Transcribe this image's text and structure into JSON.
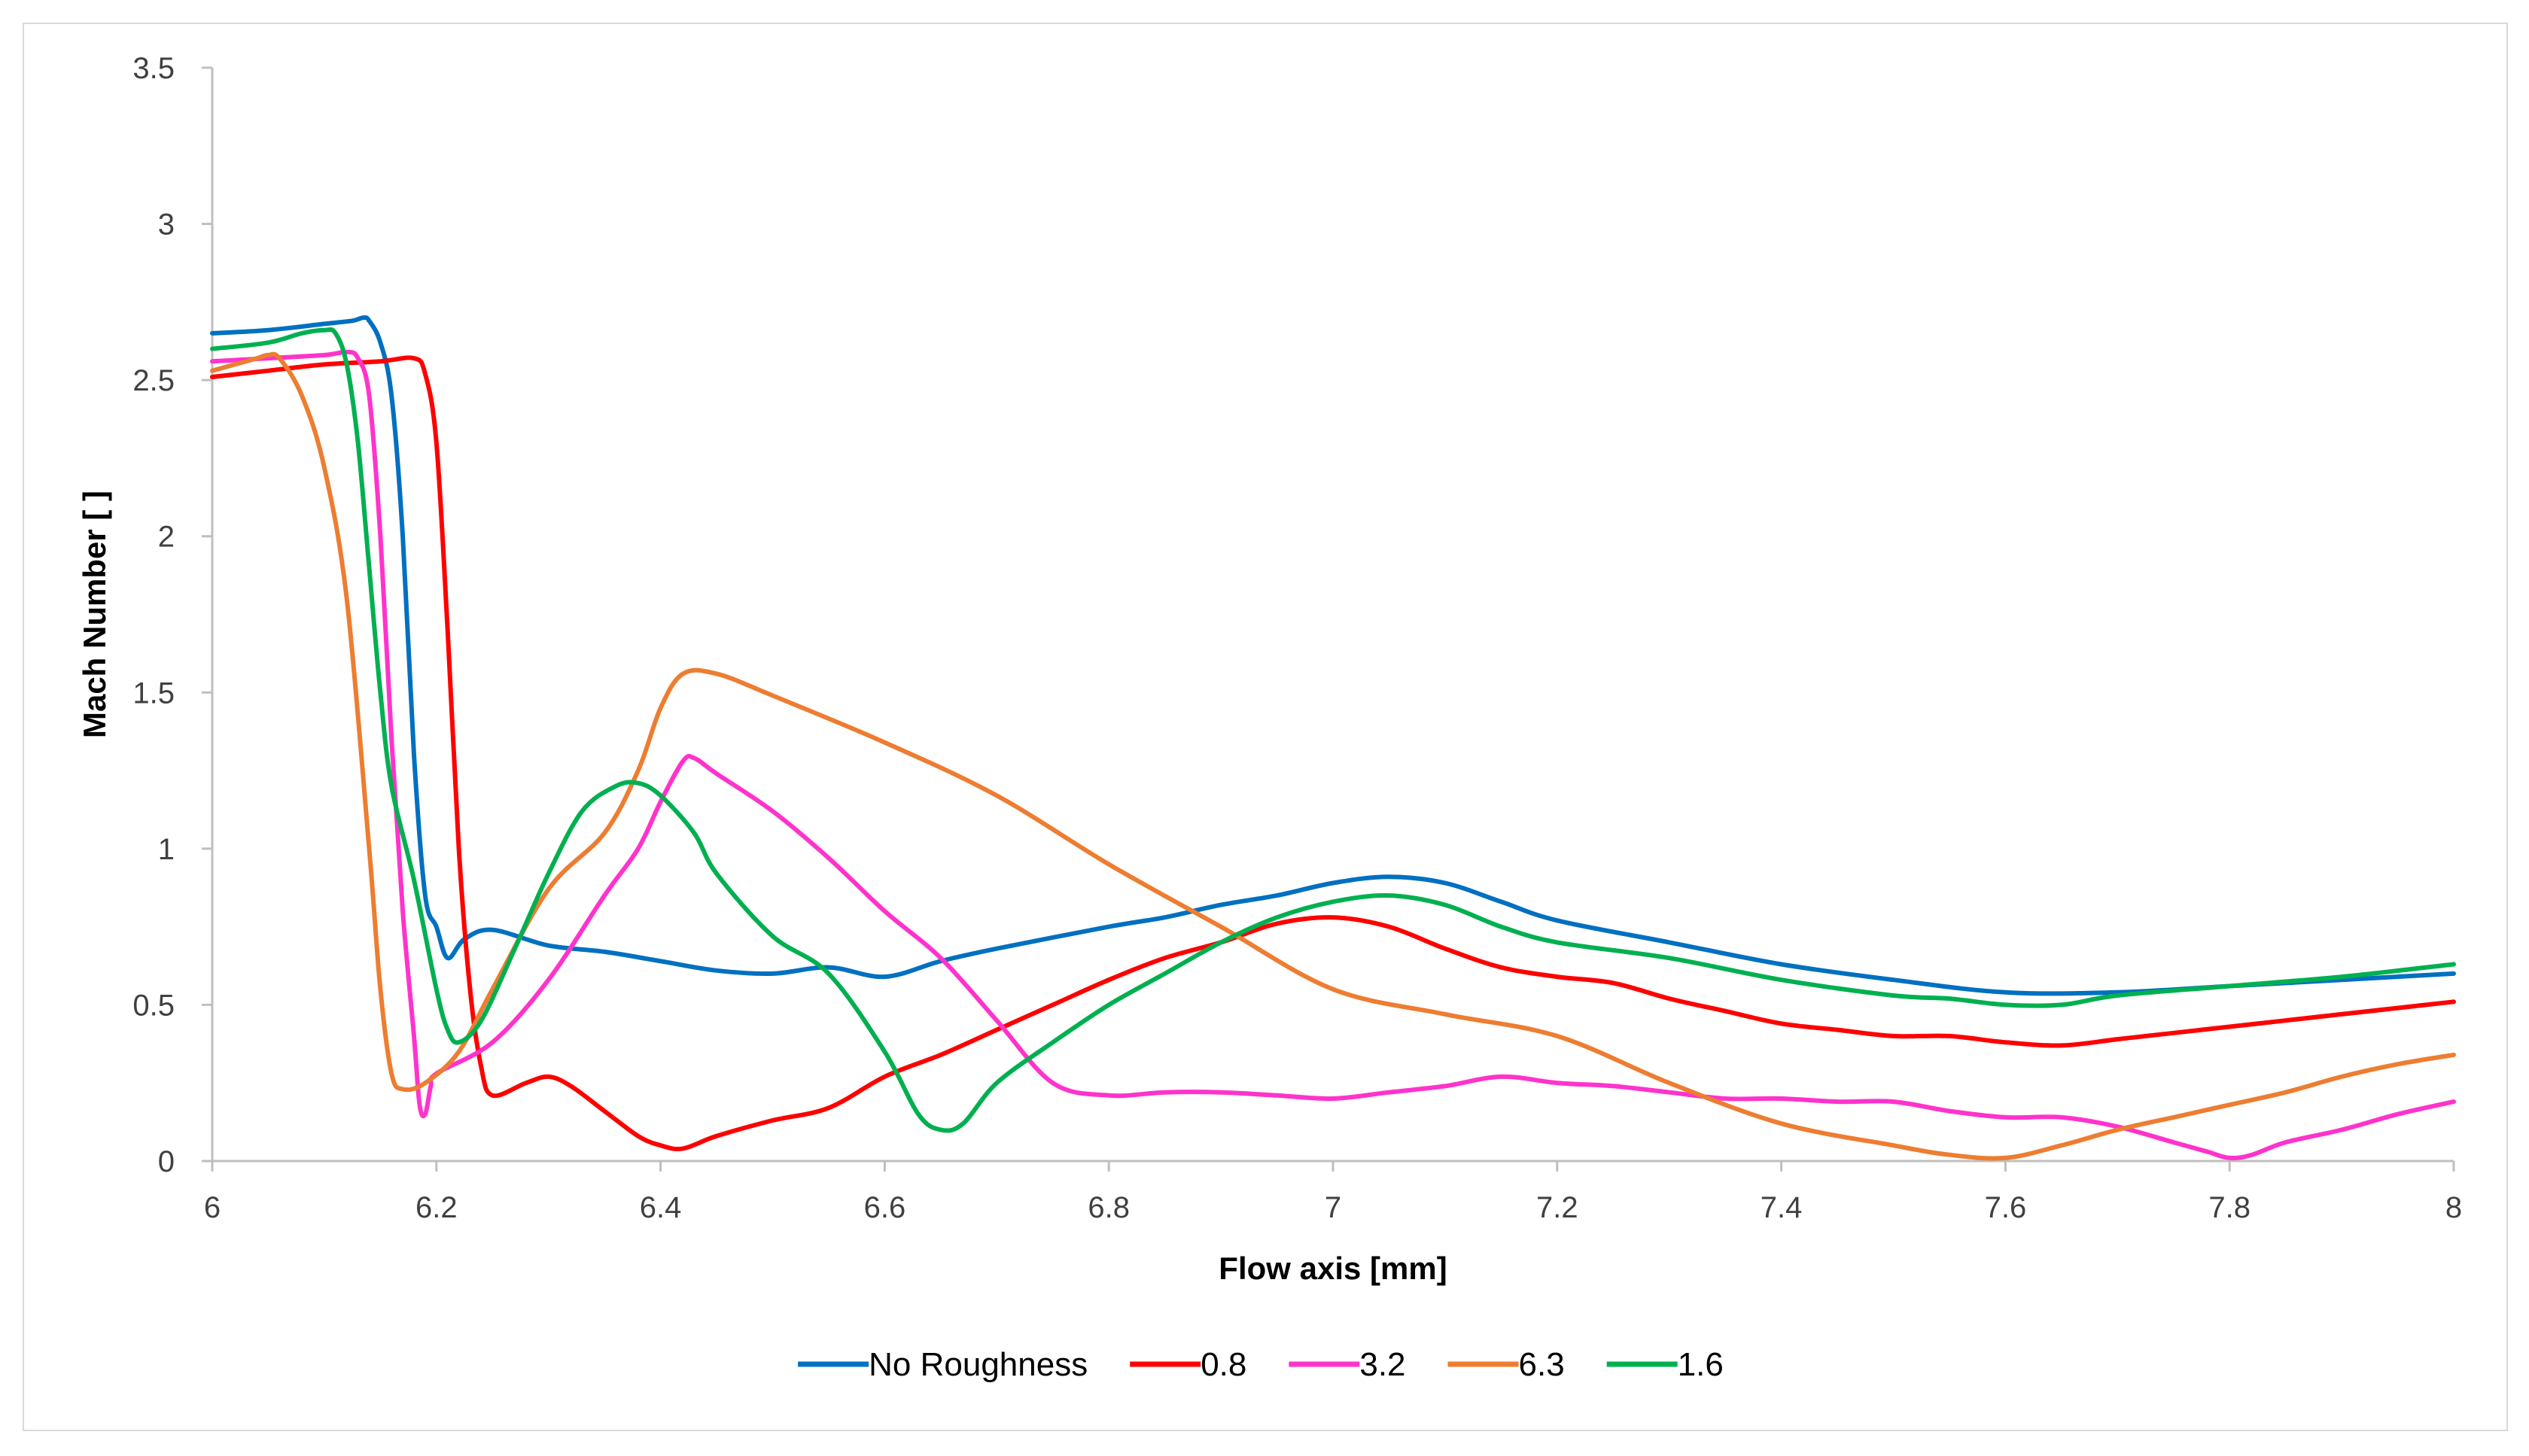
{
  "chart_data": {
    "type": "line",
    "title": "",
    "xlabel": "Flow axis [mm]",
    "ylabel": "Mach Number [ ]",
    "xlim": [
      6,
      8
    ],
    "ylim": [
      0,
      3.5
    ],
    "x_ticks": [
      6,
      6.2,
      6.4,
      6.6,
      6.8,
      7,
      7.2,
      7.4,
      7.6,
      7.8,
      8
    ],
    "x_tick_labels": [
      "6",
      "6.2",
      "6.4",
      "6.6",
      "6.8",
      "7",
      "7.2",
      "7.4",
      "7.6",
      "7.8",
      "8"
    ],
    "y_ticks": [
      0,
      0.5,
      1,
      1.5,
      2,
      2.5,
      3,
      3.5
    ],
    "y_tick_labels": [
      "0",
      "0.5",
      "1",
      "1.5",
      "2",
      "2.5",
      "3",
      "3.5"
    ],
    "grid": false,
    "legend_position": "bottom",
    "series": [
      {
        "name": "No Roughness",
        "color": "#0070C0",
        "points": [
          [
            6.0,
            2.65
          ],
          [
            6.05,
            2.66
          ],
          [
            6.1,
            2.68
          ],
          [
            6.125,
            2.69
          ],
          [
            6.135,
            2.7
          ],
          [
            6.14,
            2.69
          ],
          [
            6.15,
            2.62
          ],
          [
            6.16,
            2.45
          ],
          [
            6.17,
            2.0
          ],
          [
            6.18,
            1.3
          ],
          [
            6.19,
            0.85
          ],
          [
            6.2,
            0.75
          ],
          [
            6.21,
            0.65
          ],
          [
            6.225,
            0.71
          ],
          [
            6.25,
            0.74
          ],
          [
            6.3,
            0.69
          ],
          [
            6.35,
            0.67
          ],
          [
            6.4,
            0.64
          ],
          [
            6.45,
            0.61
          ],
          [
            6.5,
            0.6
          ],
          [
            6.55,
            0.62
          ],
          [
            6.6,
            0.59
          ],
          [
            6.65,
            0.64
          ],
          [
            6.7,
            0.68
          ],
          [
            6.8,
            0.75
          ],
          [
            6.85,
            0.78
          ],
          [
            6.9,
            0.82
          ],
          [
            6.95,
            0.85
          ],
          [
            7.0,
            0.89
          ],
          [
            7.05,
            0.91
          ],
          [
            7.1,
            0.89
          ],
          [
            7.15,
            0.83
          ],
          [
            7.2,
            0.77
          ],
          [
            7.3,
            0.7
          ],
          [
            7.4,
            0.63
          ],
          [
            7.5,
            0.58
          ],
          [
            7.6,
            0.54
          ],
          [
            7.7,
            0.54
          ],
          [
            7.8,
            0.56
          ],
          [
            7.9,
            0.58
          ],
          [
            8.0,
            0.6
          ]
        ]
      },
      {
        "name": "0.8",
        "color": "#FF0000",
        "points": [
          [
            6.0,
            2.51
          ],
          [
            6.05,
            2.53
          ],
          [
            6.1,
            2.55
          ],
          [
            6.15,
            2.56
          ],
          [
            6.18,
            2.57
          ],
          [
            6.19,
            2.52
          ],
          [
            6.2,
            2.3
          ],
          [
            6.21,
            1.7
          ],
          [
            6.22,
            1.0
          ],
          [
            6.23,
            0.55
          ],
          [
            6.24,
            0.3
          ],
          [
            6.25,
            0.21
          ],
          [
            6.28,
            0.25
          ],
          [
            6.3,
            0.27
          ],
          [
            6.32,
            0.24
          ],
          [
            6.35,
            0.16
          ],
          [
            6.38,
            0.08
          ],
          [
            6.4,
            0.05
          ],
          [
            6.42,
            0.04
          ],
          [
            6.45,
            0.08
          ],
          [
            6.5,
            0.13
          ],
          [
            6.55,
            0.17
          ],
          [
            6.6,
            0.27
          ],
          [
            6.65,
            0.34
          ],
          [
            6.7,
            0.42
          ],
          [
            6.75,
            0.5
          ],
          [
            6.8,
            0.58
          ],
          [
            6.85,
            0.65
          ],
          [
            6.9,
            0.7
          ],
          [
            6.95,
            0.76
          ],
          [
            7.0,
            0.78
          ],
          [
            7.05,
            0.75
          ],
          [
            7.1,
            0.68
          ],
          [
            7.15,
            0.62
          ],
          [
            7.2,
            0.59
          ],
          [
            7.25,
            0.57
          ],
          [
            7.3,
            0.52
          ],
          [
            7.35,
            0.48
          ],
          [
            7.4,
            0.44
          ],
          [
            7.45,
            0.42
          ],
          [
            7.5,
            0.4
          ],
          [
            7.55,
            0.4
          ],
          [
            7.6,
            0.38
          ],
          [
            7.65,
            0.37
          ],
          [
            7.7,
            0.39
          ],
          [
            7.75,
            0.41
          ],
          [
            7.8,
            0.43
          ],
          [
            7.85,
            0.45
          ],
          [
            7.9,
            0.47
          ],
          [
            7.95,
            0.49
          ],
          [
            8.0,
            0.51
          ]
        ]
      },
      {
        "name": "3.2",
        "color": "#FF33CC",
        "points": [
          [
            6.0,
            2.56
          ],
          [
            6.05,
            2.57
          ],
          [
            6.1,
            2.58
          ],
          [
            6.12,
            2.59
          ],
          [
            6.13,
            2.57
          ],
          [
            6.14,
            2.45
          ],
          [
            6.15,
            2.0
          ],
          [
            6.16,
            1.35
          ],
          [
            6.17,
            0.8
          ],
          [
            6.18,
            0.4
          ],
          [
            6.185,
            0.18
          ],
          [
            6.19,
            0.15
          ],
          [
            6.195,
            0.24
          ],
          [
            6.2,
            0.28
          ],
          [
            6.25,
            0.38
          ],
          [
            6.3,
            0.58
          ],
          [
            6.35,
            0.85
          ],
          [
            6.38,
            1.0
          ],
          [
            6.4,
            1.15
          ],
          [
            6.42,
            1.28
          ],
          [
            6.43,
            1.29
          ],
          [
            6.45,
            1.24
          ],
          [
            6.5,
            1.12
          ],
          [
            6.55,
            0.97
          ],
          [
            6.6,
            0.8
          ],
          [
            6.65,
            0.65
          ],
          [
            6.7,
            0.45
          ],
          [
            6.75,
            0.25
          ],
          [
            6.8,
            0.21
          ],
          [
            6.85,
            0.22
          ],
          [
            6.9,
            0.22
          ],
          [
            6.95,
            0.21
          ],
          [
            7.0,
            0.2
          ],
          [
            7.05,
            0.22
          ],
          [
            7.1,
            0.24
          ],
          [
            7.15,
            0.27
          ],
          [
            7.2,
            0.25
          ],
          [
            7.25,
            0.24
          ],
          [
            7.3,
            0.22
          ],
          [
            7.35,
            0.2
          ],
          [
            7.4,
            0.2
          ],
          [
            7.45,
            0.19
          ],
          [
            7.5,
            0.19
          ],
          [
            7.55,
            0.16
          ],
          [
            7.6,
            0.14
          ],
          [
            7.65,
            0.14
          ],
          [
            7.7,
            0.11
          ],
          [
            7.75,
            0.06
          ],
          [
            7.78,
            0.03
          ],
          [
            7.8,
            0.01
          ],
          [
            7.82,
            0.02
          ],
          [
            7.85,
            0.06
          ],
          [
            7.9,
            0.1
          ],
          [
            7.95,
            0.15
          ],
          [
            8.0,
            0.19
          ]
        ]
      },
      {
        "name": "6.3",
        "color": "#ED7D31",
        "points": [
          [
            6.0,
            2.53
          ],
          [
            6.02,
            2.55
          ],
          [
            6.04,
            2.57
          ],
          [
            6.05,
            2.58
          ],
          [
            6.06,
            2.57
          ],
          [
            6.08,
            2.45
          ],
          [
            6.1,
            2.22
          ],
          [
            6.12,
            1.8
          ],
          [
            6.14,
            1.0
          ],
          [
            6.15,
            0.55
          ],
          [
            6.16,
            0.28
          ],
          [
            6.17,
            0.23
          ],
          [
            6.19,
            0.25
          ],
          [
            6.22,
            0.35
          ],
          [
            6.25,
            0.55
          ],
          [
            6.3,
            0.87
          ],
          [
            6.35,
            1.05
          ],
          [
            6.38,
            1.25
          ],
          [
            6.4,
            1.45
          ],
          [
            6.42,
            1.56
          ],
          [
            6.45,
            1.56
          ],
          [
            6.5,
            1.49
          ],
          [
            6.6,
            1.34
          ],
          [
            6.7,
            1.17
          ],
          [
            6.8,
            0.95
          ],
          [
            6.9,
            0.75
          ],
          [
            7.0,
            0.55
          ],
          [
            7.1,
            0.47
          ],
          [
            7.2,
            0.4
          ],
          [
            7.3,
            0.25
          ],
          [
            7.4,
            0.12
          ],
          [
            7.5,
            0.05
          ],
          [
            7.55,
            0.02
          ],
          [
            7.6,
            0.01
          ],
          [
            7.65,
            0.05
          ],
          [
            7.7,
            0.1
          ],
          [
            7.75,
            0.14
          ],
          [
            7.8,
            0.18
          ],
          [
            7.85,
            0.22
          ],
          [
            7.9,
            0.27
          ],
          [
            7.95,
            0.31
          ],
          [
            8.0,
            0.34
          ]
        ]
      },
      {
        "name": "1.6",
        "color": "#00B050",
        "points": [
          [
            6.0,
            2.6
          ],
          [
            6.05,
            2.62
          ],
          [
            6.08,
            2.65
          ],
          [
            6.1,
            2.66
          ],
          [
            6.11,
            2.65
          ],
          [
            6.12,
            2.55
          ],
          [
            6.13,
            2.3
          ],
          [
            6.14,
            1.9
          ],
          [
            6.15,
            1.5
          ],
          [
            6.16,
            1.2
          ],
          [
            6.18,
            0.9
          ],
          [
            6.2,
            0.55
          ],
          [
            6.21,
            0.42
          ],
          [
            6.22,
            0.38
          ],
          [
            6.24,
            0.45
          ],
          [
            6.27,
            0.68
          ],
          [
            6.3,
            0.92
          ],
          [
            6.33,
            1.12
          ],
          [
            6.36,
            1.2
          ],
          [
            6.38,
            1.21
          ],
          [
            6.4,
            1.17
          ],
          [
            6.43,
            1.05
          ],
          [
            6.45,
            0.92
          ],
          [
            6.5,
            0.72
          ],
          [
            6.55,
            0.6
          ],
          [
            6.6,
            0.35
          ],
          [
            6.63,
            0.15
          ],
          [
            6.65,
            0.1
          ],
          [
            6.67,
            0.12
          ],
          [
            6.7,
            0.25
          ],
          [
            6.75,
            0.38
          ],
          [
            6.8,
            0.5
          ],
          [
            6.85,
            0.6
          ],
          [
            6.9,
            0.7
          ],
          [
            6.95,
            0.78
          ],
          [
            7.0,
            0.83
          ],
          [
            7.05,
            0.85
          ],
          [
            7.1,
            0.82
          ],
          [
            7.15,
            0.75
          ],
          [
            7.2,
            0.7
          ],
          [
            7.3,
            0.65
          ],
          [
            7.4,
            0.58
          ],
          [
            7.5,
            0.53
          ],
          [
            7.55,
            0.52
          ],
          [
            7.6,
            0.5
          ],
          [
            7.65,
            0.5
          ],
          [
            7.7,
            0.53
          ],
          [
            7.8,
            0.56
          ],
          [
            7.9,
            0.59
          ],
          [
            8.0,
            0.63
          ]
        ]
      }
    ]
  }
}
